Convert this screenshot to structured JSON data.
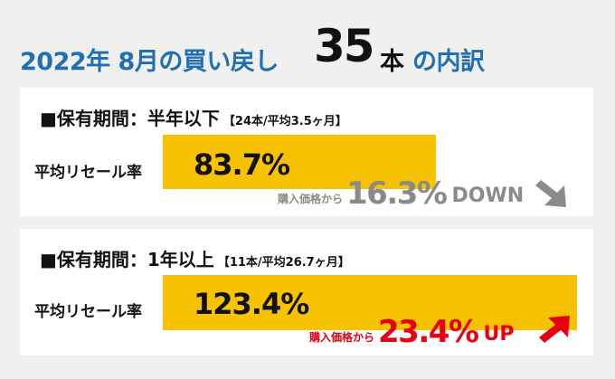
{
  "title": {
    "part1": "2022年 8月の買い戻し",
    "part2": "35",
    "part3": "本",
    "part4": "の内訳"
  },
  "sections": [
    {
      "period_label": "■保有期間：半年以下",
      "period_detail": "【24本/平均3.5ヶ月】",
      "rate_label": "平均リセール率",
      "rate_value": "83.7%",
      "rate_fraction": 0.837,
      "change_prefix": "購入価格から",
      "change_value": "16.3%",
      "change_direction": "DOWN",
      "change_color": "#8a8a8a",
      "arrow_icon": "arrow-down-right-icon"
    },
    {
      "period_label": "■保有期間：1年以上",
      "period_detail": "【11本/平均26.7ヶ月】",
      "rate_label": "平均リセール率",
      "rate_value": "123.4%",
      "rate_fraction": 1.234,
      "change_prefix": "購入価格から",
      "change_value": "23.4%",
      "change_direction": "UP",
      "change_color": "#e60012",
      "arrow_icon": "arrow-up-right-icon"
    }
  ],
  "colors": {
    "title_blue": "#1f6fb5",
    "bar_yellow": "#f7c300",
    "background": "#f0f0f0",
    "card": "#ffffff"
  }
}
